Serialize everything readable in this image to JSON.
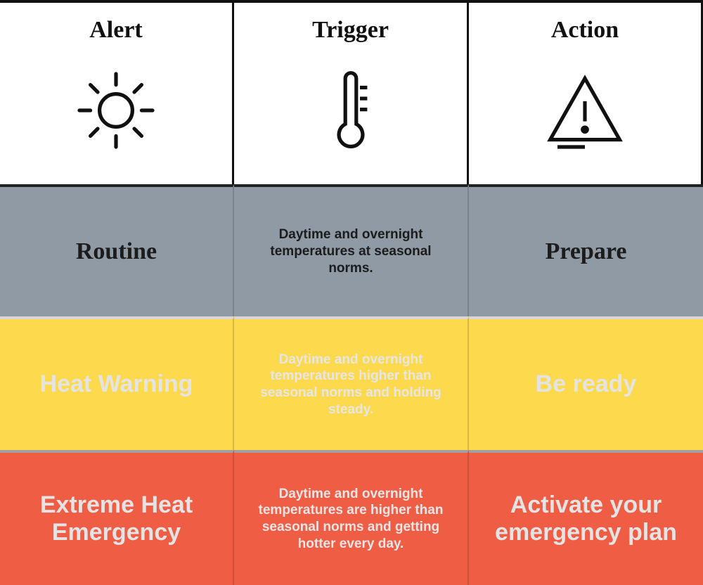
{
  "header": {
    "columns": [
      {
        "label": "Alert",
        "icon": "sun-icon"
      },
      {
        "label": "Trigger",
        "icon": "thermometer-icon"
      },
      {
        "label": "Action",
        "icon": "warning-triangle-icon"
      }
    ]
  },
  "rows": [
    {
      "color": "#8f9aa4",
      "alert": "Routine",
      "trigger": "Daytime and overnight temperatures at seasonal norms.",
      "action": "Prepare"
    },
    {
      "color": "#fdd94d",
      "alert": "Heat Warning",
      "trigger": "Daytime and overnight temperatures higher than seasonal norms and holding steady.",
      "action": "Be ready"
    },
    {
      "color": "#f05d45",
      "alert": "Extreme Heat Emergency",
      "trigger": "Daytime and overnight temperatures are higher than seasonal norms and getting hotter every day.",
      "action": "Activate your emergency plan"
    }
  ]
}
